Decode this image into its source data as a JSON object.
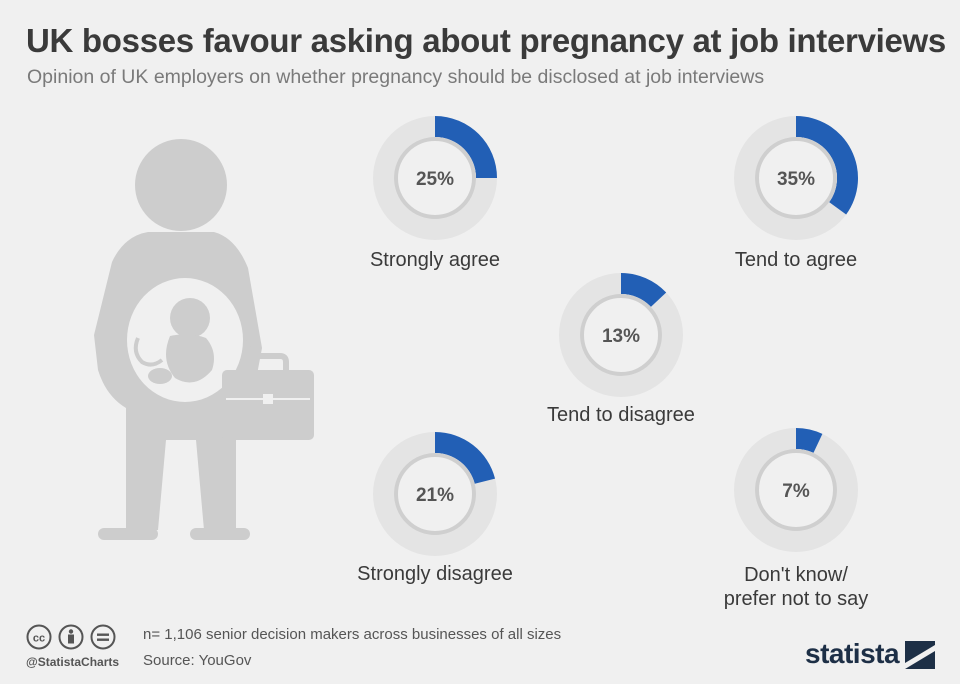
{
  "header": {
    "title": "UK bosses favour asking about pregnancy at job interviews",
    "subtitle": "Opinion of UK employers on whether pregnancy should be disclosed at job interviews"
  },
  "chart_data": {
    "type": "donut",
    "title": "UK bosses favour asking about pregnancy at job interviews",
    "subtitle": "Opinion of UK employers on whether pregnancy should be disclosed at job interviews",
    "unit": "%",
    "categories": [
      "Strongly agree",
      "Tend to agree",
      "Tend to disagree",
      "Strongly disagree",
      "Don't know/ prefer not to say"
    ],
    "values": [
      25,
      35,
      13,
      21,
      7
    ],
    "items": [
      {
        "label": "Strongly agree",
        "label_lines": [
          "Strongly agree"
        ],
        "value": 25,
        "value_label": "25%"
      },
      {
        "label": "Tend to agree",
        "label_lines": [
          "Tend to agree"
        ],
        "value": 35,
        "value_label": "35%"
      },
      {
        "label": "Tend to disagree",
        "label_lines": [
          "Tend to disagree"
        ],
        "value": 13,
        "value_label": "13%"
      },
      {
        "label": "Strongly disagree",
        "label_lines": [
          "Strongly disagree"
        ],
        "value": 21,
        "value_label": "21%"
      },
      {
        "label": "Don't know/ prefer not to say",
        "label_lines": [
          "Don't know/",
          "prefer not to say"
        ],
        "value": 7,
        "value_label": "7%"
      }
    ],
    "colors": {
      "fill": "#225fb5",
      "ring": "#e4e4e4",
      "inner_line": "#cfcfcf"
    }
  },
  "footer": {
    "note": "n= 1,106 senior decision makers across businesses of all sizes",
    "source": "Source: YouGov",
    "handle": "@StatistaCharts",
    "brand": "statista"
  },
  "icons": {
    "illustration": "pregnant-woman-icon",
    "briefcase": "briefcase-icon",
    "license": [
      "cc-icon",
      "attribution-icon",
      "no-derivatives-icon"
    ],
    "brand_mark": "statista-logo-icon"
  }
}
